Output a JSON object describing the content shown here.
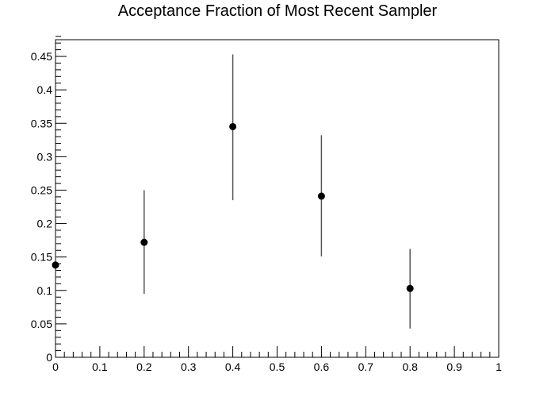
{
  "chart_data": {
    "type": "scatter",
    "title": "Acceptance Fraction of Most Recent Sampler",
    "xlabel": "",
    "ylabel": "",
    "xlim": [
      0,
      1
    ],
    "ylim": [
      0,
      0.475
    ],
    "x_ticks": [
      0,
      0.1,
      0.2,
      0.3,
      0.4,
      0.5,
      0.6,
      0.7,
      0.8,
      0.9,
      1
    ],
    "x_tick_labels": [
      "0",
      "0.1",
      "0.2",
      "0.3",
      "0.4",
      "0.5",
      "0.6",
      "0.7",
      "0.8",
      "0.9",
      "1"
    ],
    "y_ticks": [
      0,
      0.05,
      0.1,
      0.15,
      0.2,
      0.25,
      0.3,
      0.35,
      0.4,
      0.45
    ],
    "y_tick_labels": [
      "0",
      "0.05",
      "0.1",
      "0.15",
      "0.2",
      "0.25",
      "0.3",
      "0.35",
      "0.4",
      "0.45"
    ],
    "grid": false,
    "legend": "none",
    "marker_color": "#000000",
    "points": [
      {
        "x": 0.0,
        "y": 0.138,
        "y_err_low": 0.07,
        "y_err_high": 0.205
      },
      {
        "x": 0.2,
        "y": 0.172,
        "y_err_low": 0.095,
        "y_err_high": 0.25
      },
      {
        "x": 0.4,
        "y": 0.345,
        "y_err_low": 0.235,
        "y_err_high": 0.453
      },
      {
        "x": 0.6,
        "y": 0.241,
        "y_err_low": 0.151,
        "y_err_high": 0.332
      },
      {
        "x": 0.8,
        "y": 0.103,
        "y_err_low": 0.043,
        "y_err_high": 0.162
      }
    ]
  }
}
